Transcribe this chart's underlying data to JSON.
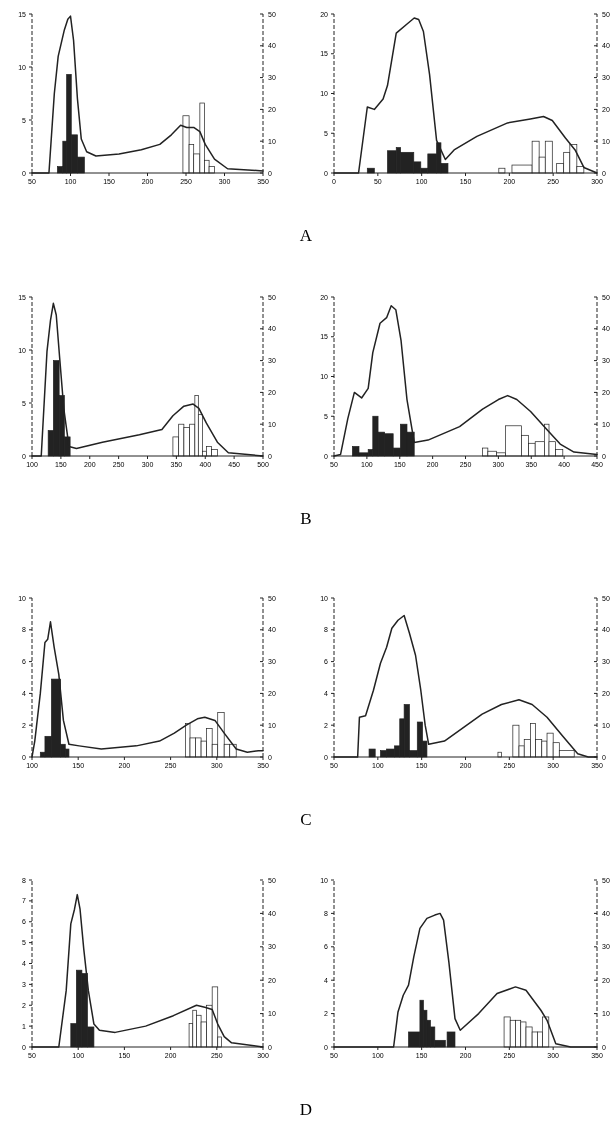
{
  "chart_data": [
    {
      "type": "line",
      "xlim": [
        50,
        350
      ],
      "xticks": [
        50,
        100,
        150,
        200,
        250,
        300,
        350
      ],
      "ylim": [
        0,
        15
      ],
      "yticks": [
        0,
        5,
        10,
        15
      ],
      "y2lim": [
        0,
        50
      ],
      "y2ticks": [
        0,
        10,
        20,
        30,
        40,
        50
      ],
      "annotations": [
        "A"
      ],
      "series": [
        {
          "type": "histogram",
          "axis": "y2",
          "color": "#222222",
          "bins": [
            83,
            90,
            95,
            101,
            109,
            118
          ],
          "values": [
            2,
            10,
            31,
            12,
            5
          ]
        },
        {
          "type": "histogram",
          "axis": "y2",
          "color": "#ffffff",
          "bins": [
            246,
            254,
            260,
            268,
            274,
            280,
            287
          ],
          "values": [
            18,
            9,
            6,
            22,
            4,
            2
          ]
        },
        {
          "color": "#222222",
          "x": [
            50,
            72,
            79,
            84,
            92,
            96.5,
            100,
            104,
            109,
            114,
            121,
            133,
            163,
            192,
            216,
            231,
            243,
            251,
            260,
            268,
            275,
            287,
            304,
            350
          ],
          "values": [
            0,
            0,
            7.5,
            11,
            13.5,
            14.5,
            14.8,
            12.5,
            7,
            3.2,
            2,
            1.6,
            1.8,
            2.2,
            2.7,
            3.6,
            4.5,
            4.3,
            4.3,
            3.9,
            2.7,
            1.3,
            0.4,
            0.2
          ]
        }
      ]
    },
    {
      "type": "line",
      "xlim": [
        0,
        300
      ],
      "xticks": [
        0,
        50,
        100,
        150,
        200,
        250,
        300
      ],
      "ylim": [
        0,
        20
      ],
      "yticks": [
        0,
        5,
        10,
        15,
        20
      ],
      "y2lim": [
        0,
        50
      ],
      "y2ticks": [
        0,
        10,
        20,
        30,
        40,
        50
      ],
      "series": [
        {
          "type": "histogram",
          "axis": "y2",
          "color": "#222222",
          "bins": [
            38,
            46,
            61,
            71,
            76,
            91,
            99,
            107,
            117,
            122,
            130
          ],
          "values": [
            1.5,
            0,
            7,
            8,
            6.5,
            3.5,
            1.5,
            6,
            9.5,
            3
          ]
        },
        {
          "type": "histogram",
          "axis": "y2",
          "color": "#ffffff",
          "bins": [
            188,
            195,
            203,
            226,
            234,
            241,
            249,
            254,
            262,
            269,
            277,
            285
          ],
          "values": [
            1.5,
            0,
            2.5,
            10,
            5,
            10,
            0,
            3,
            6.5,
            9,
            2
          ]
        },
        {
          "color": "#222222",
          "x": [
            0,
            28,
            38,
            46,
            56,
            61,
            71,
            84,
            91.5,
            96.6,
            102,
            109,
            117,
            127,
            137,
            163,
            198,
            224,
            239,
            249,
            264,
            275,
            285,
            300
          ],
          "values": [
            0,
            0,
            8.3,
            8,
            9.3,
            11,
            17.6,
            18.8,
            19.5,
            19.3,
            17.8,
            12.4,
            4.1,
            1.7,
            2.9,
            4.6,
            6.3,
            6.8,
            7.1,
            6.6,
            4.4,
            2.9,
            0.7,
            0
          ]
        }
      ]
    },
    {
      "type": "line",
      "xlim": [
        100,
        500
      ],
      "xticks": [
        100,
        150,
        200,
        250,
        300,
        350,
        400,
        450,
        500
      ],
      "ylim": [
        0,
        15
      ],
      "yticks": [
        0,
        5,
        10,
        15
      ],
      "y2lim": [
        0,
        50
      ],
      "y2ticks": [
        0,
        10,
        20,
        30,
        40,
        50
      ],
      "annotations": [
        "B"
      ],
      "series": [
        {
          "type": "histogram",
          "axis": "y2",
          "color": "#222222",
          "bins": [
            128,
            137,
            147,
            156,
            166
          ],
          "values": [
            8,
            30,
            19,
            6
          ]
        },
        {
          "type": "histogram",
          "axis": "y2",
          "color": "#ffffff",
          "bins": [
            344,
            354,
            363,
            373,
            382,
            388,
            395,
            402,
            411,
            421
          ],
          "values": [
            6,
            10,
            9,
            10,
            19,
            13,
            1.5,
            3,
            2
          ]
        },
        {
          "color": "#222222",
          "x": [
            100,
            116,
            126,
            132,
            137,
            142,
            148,
            155,
            164,
            177,
            222,
            286,
            325,
            344,
            363,
            379,
            389,
            402,
            421,
            440,
            500
          ],
          "values": [
            0,
            0,
            9.9,
            12.8,
            14.4,
            13.3,
            9.2,
            4.5,
            0.9,
            0.7,
            1.3,
            2,
            2.5,
            3.8,
            4.7,
            4.9,
            4.5,
            3.1,
            1.3,
            0.3,
            0
          ]
        }
      ]
    },
    {
      "type": "line",
      "xlim": [
        50,
        450
      ],
      "xticks": [
        50,
        100,
        150,
        200,
        250,
        300,
        350,
        400,
        450
      ],
      "ylim": [
        0,
        20
      ],
      "yticks": [
        0,
        5,
        10,
        15,
        20
      ],
      "y2lim": [
        0,
        50
      ],
      "y2ticks": [
        0,
        10,
        20,
        30,
        40,
        50
      ],
      "series": [
        {
          "type": "histogram",
          "axis": "y2",
          "color": "#222222",
          "bins": [
            78,
            88,
            102,
            109,
            117,
            127,
            140,
            151,
            161,
            172
          ],
          "values": [
            3,
            1,
            2,
            12.5,
            7.5,
            7,
            2.5,
            10,
            7.5
          ]
        },
        {
          "type": "histogram",
          "axis": "y2",
          "color": "#ffffff",
          "bins": [
            276,
            284,
            297,
            311,
            335,
            346,
            356,
            370,
            377,
            387,
            398
          ],
          "values": [
            2.5,
            1.5,
            1,
            9.5,
            6.5,
            4,
            4.5,
            10,
            4.5,
            2
          ]
        },
        {
          "color": "#222222",
          "x": [
            50,
            60,
            71,
            81,
            92,
            102,
            109,
            120,
            130,
            137,
            144,
            152,
            161,
            172,
            193,
            241,
            276,
            300,
            314,
            328,
            349,
            373,
            394,
            415,
            450
          ],
          "values": [
            0,
            0.2,
            4.7,
            8,
            7.3,
            8.5,
            13,
            16.7,
            17.4,
            18.9,
            18.4,
            14.5,
            7.1,
            1.7,
            2,
            3.7,
            5.9,
            7.1,
            7.6,
            7.1,
            5.6,
            3.4,
            1.5,
            0.5,
            0.2
          ]
        }
      ]
    },
    {
      "type": "line",
      "xlim": [
        100,
        350
      ],
      "xticks": [
        100,
        150,
        200,
        250,
        300,
        350
      ],
      "ylim": [
        0,
        10
      ],
      "yticks": [
        0,
        2,
        4,
        6,
        8,
        10
      ],
      "y2lim": [
        0,
        50
      ],
      "y2ticks": [
        0,
        10,
        20,
        30,
        40,
        50
      ],
      "annotations": [
        "C"
      ],
      "series": [
        {
          "type": "histogram",
          "axis": "y2",
          "color": "#222222",
          "bins": [
            109,
            114,
            121,
            131,
            136,
            140
          ],
          "values": [
            1.5,
            6.5,
            24.5,
            4,
            2.5
          ]
        },
        {
          "type": "histogram",
          "axis": "y2",
          "color": "#ffffff",
          "bins": [
            266,
            271,
            277,
            283,
            289,
            295,
            301,
            308,
            314,
            321
          ],
          "values": [
            10.5,
            6,
            6,
            5,
            9,
            4,
            14,
            4,
            4
          ]
        },
        {
          "color": "#222222",
          "x": [
            100,
            103,
            109,
            114,
            117,
            120,
            124,
            129,
            134,
            140,
            151,
            175,
            213,
            238,
            254,
            267,
            279,
            287,
            298,
            308,
            321,
            333,
            345,
            350
          ],
          "values": [
            0,
            1,
            4,
            7.2,
            7.4,
            8.5,
            6.9,
            5.2,
            2.3,
            0.8,
            0.7,
            0.5,
            0.7,
            1,
            1.5,
            2,
            2.4,
            2.5,
            2.3,
            1.5,
            0.5,
            0.3,
            0.4,
            0.4
          ]
        }
      ]
    },
    {
      "type": "line",
      "xlim": [
        50,
        350
      ],
      "xticks": [
        50,
        100,
        150,
        200,
        250,
        300,
        350
      ],
      "ylim": [
        0,
        10
      ],
      "yticks": [
        0,
        2,
        4,
        6,
        8,
        10
      ],
      "y2lim": [
        0,
        50
      ],
      "y2ticks": [
        0,
        10,
        20,
        30,
        40,
        50
      ],
      "series": [
        {
          "type": "histogram",
          "axis": "y2",
          "color": "#222222",
          "bins": [
            90,
            97,
            103,
            110,
            119,
            125,
            130,
            136,
            145,
            151,
            156
          ],
          "values": [
            2.5,
            0,
            2,
            2.5,
            3.5,
            12,
            16.5,
            2,
            11,
            5
          ]
        },
        {
          "type": "histogram",
          "axis": "y2",
          "color": "#ffffff",
          "bins": [
            237,
            241,
            254,
            261,
            267,
            274,
            280,
            287,
            293,
            300,
            307,
            324
          ],
          "values": [
            1.5,
            0,
            10,
            3.5,
            5.5,
            10.5,
            5.5,
            5,
            7.5,
            4.5,
            2
          ]
        },
        {
          "color": "#222222",
          "x": [
            50,
            77,
            79,
            86,
            95,
            103,
            110,
            116,
            123,
            130,
            136,
            143,
            149,
            154,
            158,
            176,
            219,
            241,
            261,
            276,
            293,
            311,
            328,
            340,
            350
          ],
          "values": [
            0,
            0,
            2.5,
            2.6,
            4.2,
            5.9,
            6.9,
            8.1,
            8.6,
            8.9,
            7.8,
            6.4,
            4.2,
            2,
            0.8,
            1,
            2.7,
            3.3,
            3.6,
            3.3,
            2.5,
            1.3,
            0.2,
            0,
            0
          ]
        }
      ]
    },
    {
      "type": "line",
      "xlim": [
        50,
        300
      ],
      "xticks": [
        50,
        100,
        150,
        200,
        250,
        300
      ],
      "ylim": [
        0,
        8
      ],
      "yticks": [
        0,
        1,
        2,
        3,
        4,
        5,
        6,
        7,
        8
      ],
      "y2lim": [
        0,
        50
      ],
      "y2ticks": [
        0,
        10,
        20,
        30,
        40,
        50
      ],
      "annotations": [
        "D"
      ],
      "series": [
        {
          "type": "histogram",
          "axis": "y2",
          "color": "#222222",
          "bins": [
            92,
            98,
            104,
            110,
            117
          ],
          "values": [
            7,
            23,
            22,
            6
          ]
        },
        {
          "type": "histogram",
          "axis": "y2",
          "color": "#ffffff",
          "bins": [
            220,
            224,
            228,
            233,
            239,
            245,
            251,
            255
          ],
          "values": [
            7,
            11,
            9.5,
            7.5,
            12.5,
            18,
            3
          ]
        },
        {
          "color": "#222222",
          "x": [
            50,
            79,
            87,
            92,
            96,
            99,
            102,
            106,
            111,
            117,
            123,
            140,
            173,
            203,
            228,
            237,
            245,
            251,
            258,
            266,
            300
          ],
          "values": [
            0,
            0,
            2.7,
            5.9,
            6.6,
            7.3,
            6.6,
            4.7,
            2.7,
            1.1,
            0.8,
            0.7,
            1,
            1.5,
            2,
            1.9,
            1.8,
            1.1,
            0.5,
            0.2,
            0
          ]
        }
      ]
    },
    {
      "type": "line",
      "xlim": [
        50,
        350
      ],
      "xticks": [
        50,
        100,
        150,
        200,
        250,
        300,
        350
      ],
      "ylim": [
        0,
        10
      ],
      "yticks": [
        0,
        2,
        4,
        6,
        8,
        10
      ],
      "y2lim": [
        0,
        50
      ],
      "y2ticks": [
        0,
        10,
        20,
        30,
        40,
        50
      ],
      "series": [
        {
          "type": "histogram",
          "axis": "y2",
          "color": "#222222",
          "bins": [
            135,
            148,
            152,
            156,
            160,
            165,
            177,
            179,
            188
          ],
          "values": [
            4.5,
            14,
            11,
            8,
            6,
            2,
            0,
            4.5
          ]
        },
        {
          "type": "histogram",
          "axis": "y2",
          "color": "#ffffff",
          "bins": [
            244,
            251,
            257,
            263,
            269,
            276,
            282,
            288,
            295
          ],
          "values": [
            9,
            8,
            8,
            7.5,
            6,
            4.5,
            4.5,
            9
          ]
        },
        {
          "color": "#222222",
          "x": [
            50,
            118,
            123,
            129,
            135,
            141,
            148,
            156,
            165,
            171,
            175,
            181,
            188,
            194,
            215,
            236,
            257,
            269,
            286,
            293,
            303,
            320,
            350
          ],
          "values": [
            0,
            0,
            2.1,
            3.1,
            3.7,
            5.4,
            7.1,
            7.7,
            7.9,
            8,
            7.6,
            5.1,
            1.7,
            1,
            2,
            3.2,
            3.6,
            3.4,
            2.2,
            1.6,
            0.2,
            0,
            0
          ]
        }
      ]
    }
  ]
}
